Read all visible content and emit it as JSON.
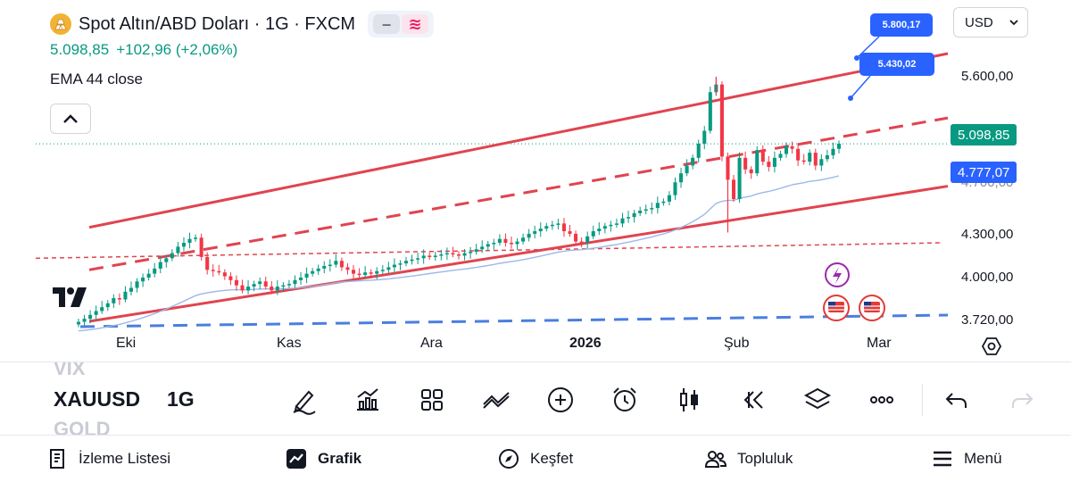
{
  "header": {
    "symbol_title": "Spot Altın/ABD Doları · 1G · FXCM",
    "last_price": "5.098,85",
    "change": "+102,96 (+2,06%)",
    "indicator": "EMA 44 close",
    "currency": "USD"
  },
  "price_axis": {
    "labels": [
      "5.600,00",
      "4.300,00",
      "4.000,00",
      "3.720,00"
    ],
    "partial_label": "4.700,00",
    "current_price_tag": "5.098,85",
    "ema_tag": "4.777,07",
    "bubble_upper": "5.800,17",
    "bubble_lower": "5.430,02"
  },
  "time_axis": {
    "labels": [
      {
        "text": "Eki",
        "bold": false
      },
      {
        "text": "Kas",
        "bold": false
      },
      {
        "text": "Ara",
        "bold": false
      },
      {
        "text": "2026",
        "bold": true
      },
      {
        "text": "Şub",
        "bold": false
      },
      {
        "text": "Mar",
        "bold": false
      }
    ]
  },
  "chart_data": {
    "type": "candlestick",
    "series_name": "XAUUSD 1G",
    "x_start": "Eki",
    "x_end": "Mar",
    "ylim": [
      3720,
      5800
    ],
    "close_series": [
      3716,
      3740,
      3770,
      3800,
      3830,
      3860,
      3900,
      3890,
      3950,
      3980,
      4030,
      4060,
      4090,
      4130,
      4180,
      4210,
      4250,
      4300,
      4330,
      4360,
      4370,
      4220,
      4120,
      4110,
      4100,
      4070,
      4040,
      4000,
      3960,
      3990,
      4010,
      4030,
      3990,
      3960,
      3990,
      4000,
      4010,
      4040,
      4060,
      4090,
      4110,
      4130,
      4150,
      4160,
      4190,
      4140,
      4120,
      4090,
      4080,
      4100,
      4090,
      4110,
      4120,
      4140,
      4160,
      4170,
      4190,
      4200,
      4210,
      4230,
      4220,
      4230,
      4240,
      4250,
      4240,
      4230,
      4250,
      4260,
      4280,
      4300,
      4320,
      4330,
      4360,
      4330,
      4320,
      4340,
      4370,
      4400,
      4420,
      4440,
      4460,
      4470,
      4480,
      4420,
      4400,
      4340,
      4330,
      4380,
      4420,
      4440,
      4460,
      4470,
      4480,
      4520,
      4530,
      4560,
      4580,
      4590,
      4600,
      4640,
      4650,
      4700,
      4800,
      4870,
      4930,
      4990,
      5100,
      5200,
      5500,
      5560,
      5000,
      4820,
      4670,
      4990,
      4900,
      4870,
      5050,
      4960,
      4920,
      4990,
      5020,
      5080,
      5060,
      4970,
      4960,
      5030,
      4930,
      4980,
      5010,
      5060,
      5100
    ],
    "ema_44": "4.777,07",
    "last_close": "5.098,85",
    "channel": {
      "upper": {
        "from_price": 4450,
        "to_price": 5800
      },
      "mid_dashed": {
        "from_price": 4120,
        "to_price": 5300
      },
      "lower": {
        "from_price": 3720,
        "to_price": 4770
      },
      "horizontal_dashed": {
        "price": 4300
      }
    },
    "grid": false
  },
  "watermark": "TradingView",
  "toolbar": {
    "ghost_above": "VIX",
    "symbol": "XAUUSD",
    "timeframe": "1G",
    "ghost_below": "GOLD",
    "tools": [
      "draw-pen",
      "chart-type",
      "indicators-grid",
      "compare",
      "add",
      "alert",
      "replay-candles",
      "rewind",
      "layers",
      "more",
      "undo",
      "redo"
    ]
  },
  "bottom_nav": {
    "items": [
      {
        "label": "İzleme Listesi",
        "icon": "watchlist-icon"
      },
      {
        "label": "Grafik",
        "icon": "chart-icon"
      },
      {
        "label": "Keşfet",
        "icon": "compass-icon"
      },
      {
        "label": "Topluluk",
        "icon": "community-icon"
      },
      {
        "label": "Menü",
        "icon": "menu-icon"
      }
    ]
  },
  "colors": {
    "up": "#089981",
    "down": "#f23645",
    "channel": "#e0444f",
    "ema": "#9db8e8",
    "accent": "#2962ff",
    "last_tag": "#089981"
  }
}
